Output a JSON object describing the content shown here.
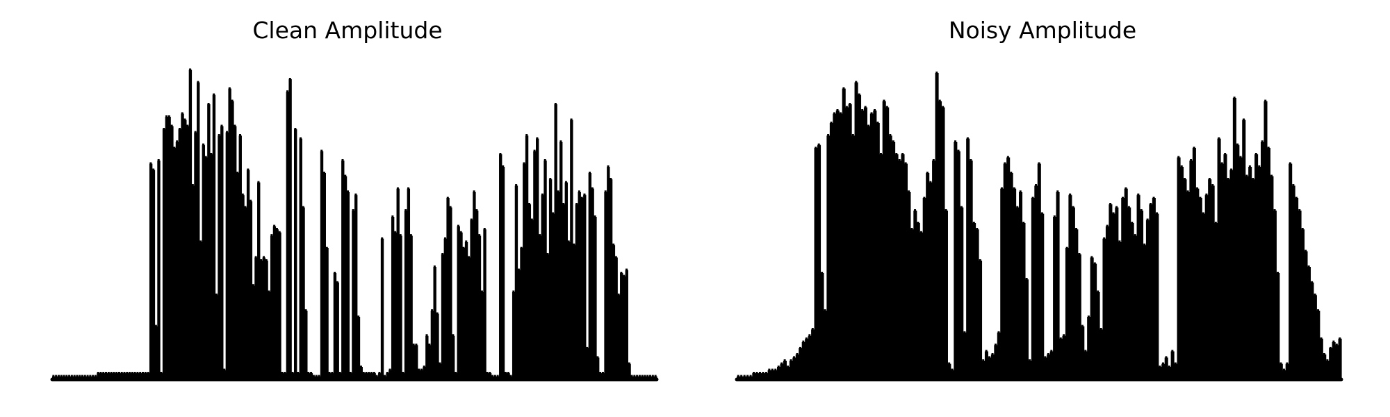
{
  "chart_data": [
    {
      "type": "area",
      "title": "Clean Amplitude",
      "xlabel": "",
      "ylabel": "",
      "axes_visible": false,
      "grid": false,
      "color": "#000000",
      "ylim": [
        0,
        1
      ],
      "envelope": [
        0.01,
        0.01,
        0.01,
        0.01,
        0.01,
        0.01,
        0.01,
        0.01,
        0.01,
        0.01,
        0.01,
        0.01,
        0.01,
        0.01,
        0.01,
        0.01,
        0.01,
        0.02,
        0.02,
        0.02,
        0.02,
        0.02,
        0.02,
        0.02,
        0.02,
        0.02,
        0.02,
        0.02,
        0.02,
        0.02,
        0.02,
        0.02,
        0.02,
        0.02,
        0.02,
        0.02,
        0.02,
        0.69,
        0.67,
        0.17,
        0.7,
        0.02,
        0.8,
        0.84,
        0.84,
        0.81,
        0.74,
        0.76,
        0.8,
        0.85,
        0.83,
        0.81,
        0.99,
        0.62,
        0.79,
        0.95,
        0.44,
        0.75,
        0.71,
        0.88,
        0.72,
        0.91,
        0.27,
        0.78,
        0.81,
        0.03,
        0.79,
        0.93,
        0.89,
        0.81,
        0.66,
        0.78,
        0.59,
        0.55,
        0.67,
        0.57,
        0.3,
        0.39,
        0.63,
        0.38,
        0.39,
        0.38,
        0.28,
        0.46,
        0.49,
        0.48,
        0.47,
        0.02,
        0.02,
        0.92,
        0.96,
        0.02,
        0.8,
        0.02,
        0.77,
        0.55,
        0.22,
        0.02,
        0.02,
        0.01,
        0.01,
        0.01,
        0.73,
        0.66,
        0.42,
        0.02,
        0.02,
        0.34,
        0.31,
        0.02,
        0.7,
        0.65,
        0.6,
        0.02,
        0.54,
        0.59,
        0.2,
        0.04,
        0.02,
        0.02,
        0.02,
        0.02,
        0.02,
        0.01,
        0.02,
        0.45,
        0.01,
        0.02,
        0.03,
        0.52,
        0.47,
        0.61,
        0.46,
        0.02,
        0.54,
        0.61,
        0.46,
        0.11,
        0.11,
        0.03,
        0.03,
        0.04,
        0.14,
        0.11,
        0.22,
        0.36,
        0.21,
        0.05,
        0.4,
        0.45,
        0.58,
        0.55,
        0.14,
        0.02,
        0.49,
        0.47,
        0.42,
        0.44,
        0.39,
        0.51,
        0.6,
        0.54,
        0.46,
        0.28,
        0.48,
        0.02,
        0.02,
        0.01,
        0.01,
        0.01,
        0.72,
        0.68,
        0.02,
        0.02,
        0.01,
        0.28,
        0.62,
        0.35,
        0.42,
        0.69,
        0.78,
        0.56,
        0.51,
        0.73,
        0.77,
        0.46,
        0.59,
        0.7,
        0.4,
        0.64,
        0.53,
        0.88,
        0.6,
        0.76,
        0.56,
        0.63,
        0.44,
        0.83,
        0.43,
        0.56,
        0.6,
        0.58,
        0.59,
        0.1,
        0.66,
        0.61,
        0.52,
        0.07,
        0.02,
        0.02,
        0.6,
        0.68,
        0.64,
        0.43,
        0.39,
        0.27,
        0.34,
        0.33,
        0.35,
        0.05,
        0.01,
        0.01,
        0.01,
        0.01,
        0.01,
        0.01,
        0.01,
        0.01,
        0.01,
        0.01
      ]
    },
    {
      "type": "area",
      "title": "Noisy Amplitude",
      "xlabel": "",
      "ylabel": "",
      "axes_visible": false,
      "grid": false,
      "color": "#000000",
      "ylim": [
        0,
        1
      ],
      "envelope": [
        0.01,
        0.01,
        0.01,
        0.01,
        0.01,
        0.02,
        0.02,
        0.02,
        0.02,
        0.02,
        0.03,
        0.03,
        0.03,
        0.04,
        0.05,
        0.06,
        0.04,
        0.06,
        0.07,
        0.08,
        0.1,
        0.12,
        0.13,
        0.14,
        0.16,
        0.74,
        0.75,
        0.34,
        0.22,
        0.78,
        0.82,
        0.85,
        0.86,
        0.85,
        0.93,
        0.87,
        0.88,
        0.78,
        0.95,
        0.91,
        0.86,
        0.87,
        0.81,
        0.85,
        0.86,
        0.82,
        0.72,
        0.89,
        0.87,
        0.78,
        0.76,
        0.72,
        0.7,
        0.72,
        0.69,
        0.6,
        0.48,
        0.54,
        0.5,
        0.47,
        0.58,
        0.66,
        0.63,
        0.7,
        0.98,
        0.89,
        0.87,
        0.54,
        0.05,
        0.03,
        0.76,
        0.73,
        0.55,
        0.15,
        0.77,
        0.7,
        0.5,
        0.48,
        0.38,
        0.06,
        0.09,
        0.07,
        0.08,
        0.11,
        0.15,
        0.61,
        0.69,
        0.71,
        0.66,
        0.61,
        0.55,
        0.6,
        0.5,
        0.32,
        0.06,
        0.58,
        0.62,
        0.69,
        0.53,
        0.07,
        0.08,
        0.09,
        0.52,
        0.6,
        0.13,
        0.14,
        0.42,
        0.59,
        0.55,
        0.48,
        0.4,
        0.17,
        0.09,
        0.2,
        0.39,
        0.37,
        0.28,
        0.16,
        0.45,
        0.49,
        0.56,
        0.53,
        0.55,
        0.44,
        0.58,
        0.61,
        0.55,
        0.5,
        0.46,
        0.59,
        0.54,
        0.43,
        0.51,
        0.56,
        0.58,
        0.53,
        0.04,
        0.05,
        0.07,
        0.04,
        0.09,
        0.05,
        0.71,
        0.68,
        0.64,
        0.6,
        0.7,
        0.74,
        0.61,
        0.58,
        0.53,
        0.59,
        0.64,
        0.62,
        0.5,
        0.77,
        0.69,
        0.72,
        0.64,
        0.67,
        0.9,
        0.75,
        0.71,
        0.83,
        0.65,
        0.68,
        0.64,
        0.72,
        0.68,
        0.76,
        0.89,
        0.74,
        0.65,
        0.54,
        0.34,
        0.05,
        0.03,
        0.05,
        0.69,
        0.62,
        0.58,
        0.54,
        0.48,
        0.41,
        0.36,
        0.31,
        0.27,
        0.22,
        0.13,
        0.08,
        0.06,
        0.1,
        0.12,
        0.11,
        0.13
      ]
    }
  ]
}
